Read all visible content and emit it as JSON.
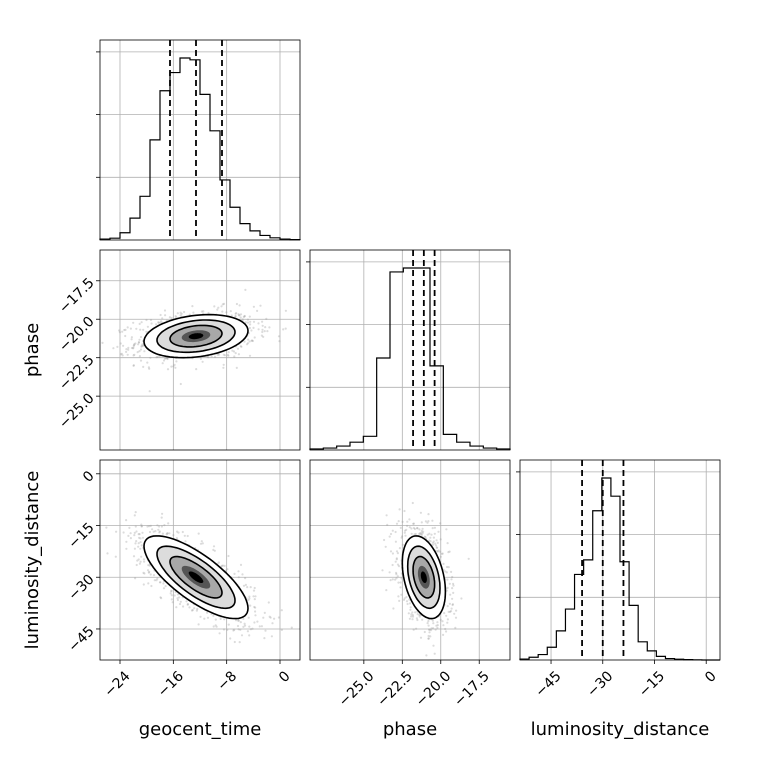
{
  "chart_data": {
    "type": "corner",
    "parameters": [
      "geocent_time",
      "phase",
      "luminosity_distance"
    ],
    "axes": {
      "geocent_time": {
        "label": "geocent_time",
        "range": [
          -27,
          3
        ],
        "ticks": [
          -24,
          -16,
          -8,
          0
        ],
        "tick_labels": [
          "−24",
          "−16",
          "−8",
          "0"
        ],
        "mean": -12.6,
        "sigma": 3.9,
        "quantiles": [
          -16.5,
          -12.6,
          -8.7
        ],
        "histogram": [
          0.005,
          0.01,
          0.04,
          0.12,
          0.24,
          0.55,
          0.82,
          0.92,
          1.0,
          0.99,
          0.8,
          0.6,
          0.33,
          0.18,
          0.09,
          0.05,
          0.025,
          0.012,
          0.005,
          0.002
        ]
      },
      "phase": {
        "label": "phase",
        "range": [
          -28.5,
          -15.5
        ],
        "ticks": [
          -25.0,
          -22.5,
          -20.0,
          -17.5
        ],
        "tick_labels": [
          "−25.0",
          "−22.5",
          "−20.0",
          "−17.5"
        ],
        "mean": -21.1,
        "sigma": 0.7,
        "quantiles": [
          -21.8,
          -21.1,
          -20.4
        ],
        "histogram": [
          0.005,
          0.01,
          0.02,
          0.04,
          0.07,
          0.47,
          0.91,
          0.93,
          0.93,
          0.43,
          0.08,
          0.04,
          0.02,
          0.01,
          0.005
        ]
      },
      "luminosity_distance": {
        "label": "luminosity_distance",
        "range": [
          -54,
          4
        ],
        "ticks": [
          -45,
          -30,
          -15,
          0
        ],
        "tick_labels": [
          "−45",
          "−30",
          "−15",
          "0"
        ],
        "mean": -30.0,
        "sigma": 6.0,
        "quantiles": [
          -36.0,
          -30.0,
          -24.0
        ],
        "histogram": [
          0.005,
          0.015,
          0.03,
          0.07,
          0.16,
          0.28,
          0.47,
          0.55,
          0.82,
          1.0,
          0.9,
          0.54,
          0.3,
          0.1,
          0.05,
          0.02,
          0.008,
          0.004,
          0.002,
          0.001,
          0.0,
          0.0
        ]
      }
    },
    "correlations": {
      "phase|geocent_time": 0.25,
      "luminosity_distance|geocent_time": -0.75,
      "luminosity_distance|phase": -0.35
    },
    "quantile_levels": [
      0.16,
      0.5,
      0.84
    ],
    "grid": true
  }
}
